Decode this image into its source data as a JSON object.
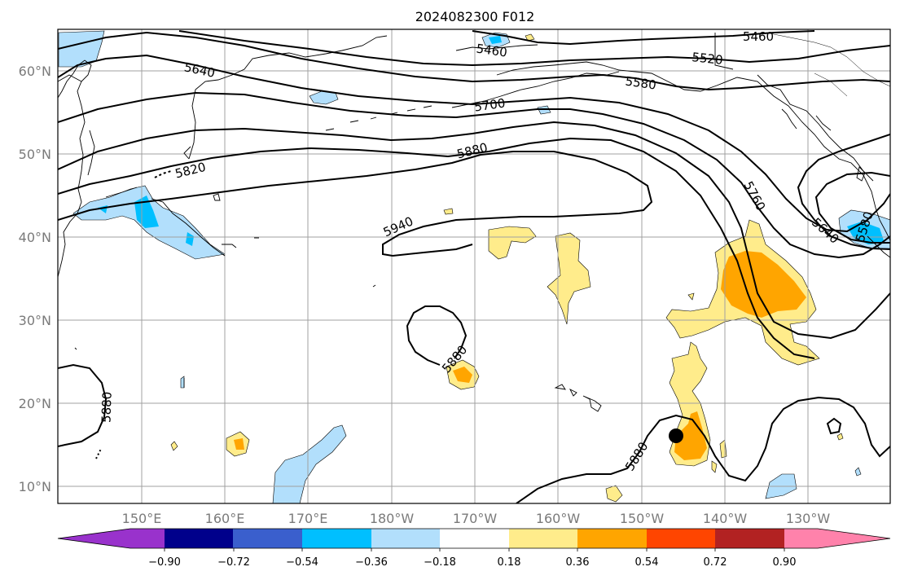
{
  "title": "2024082300 F012",
  "lat_labels": [
    "60°N",
    "50°N",
    "40°N",
    "30°N",
    "20°N",
    "10°N"
  ],
  "lon_labels": [
    "150°E",
    "160°E",
    "170°E",
    "180°W",
    "170°W",
    "160°W",
    "150°W",
    "140°W",
    "130°W"
  ],
  "contour_labels": {
    "c5460a": "5460",
    "c5460b": "5460",
    "c5520": "5520",
    "c5580a": "5580",
    "c5580b": "5580",
    "c5640a": "5640",
    "c5640b": "5640",
    "c5700": "5700",
    "c5760": "5760",
    "c5820": "5820",
    "c5880a": "5880",
    "c5880b": "5880",
    "c5880c": "5880",
    "c5880d": "5880",
    "c5940": "5940"
  },
  "colorbar": {
    "ticks": [
      "−0.90",
      "−0.72",
      "−0.54",
      "−0.36",
      "−0.18",
      "0.18",
      "0.36",
      "0.54",
      "0.72",
      "0.90"
    ],
    "colors": {
      "under": "#9932cc",
      "n072": "#00008b",
      "n054": "#3a5fcd",
      "n036": "#00bfff",
      "n018": "#b2dffc",
      "neutral": "#ffffff",
      "p018": "#ffec8b",
      "p036": "#ffa500",
      "p054": "#ff4500",
      "p072": "#b22222",
      "over": "#ff82ab"
    }
  }
}
